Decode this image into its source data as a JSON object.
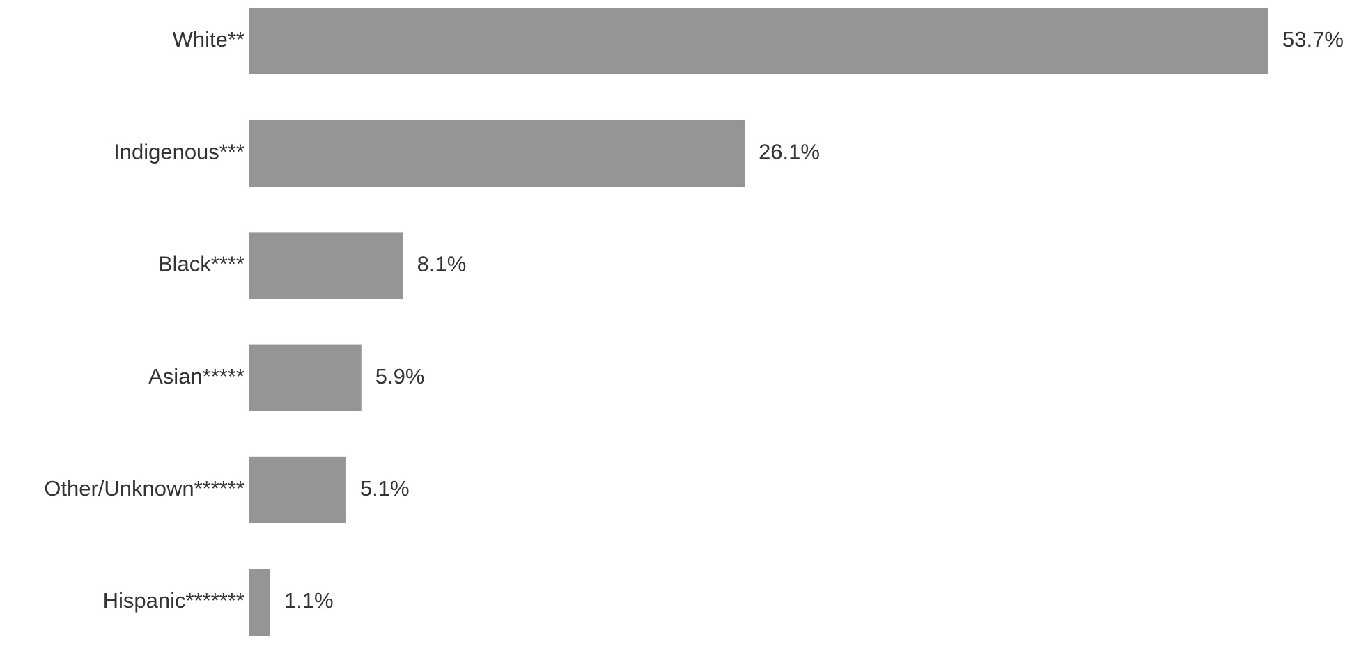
{
  "chart_data": {
    "type": "bar",
    "orientation": "horizontal",
    "categories": [
      "White**",
      "Indigenous***",
      "Black****",
      "Asian*****",
      "Other/Unknown******",
      "Hispanic*******"
    ],
    "values": [
      53.7,
      26.1,
      8.1,
      5.9,
      5.1,
      1.1
    ],
    "value_labels": [
      "53.7%",
      "26.1%",
      "8.1%",
      "5.9%",
      "5.1%",
      "1.1%"
    ],
    "color": "#969595"
  }
}
